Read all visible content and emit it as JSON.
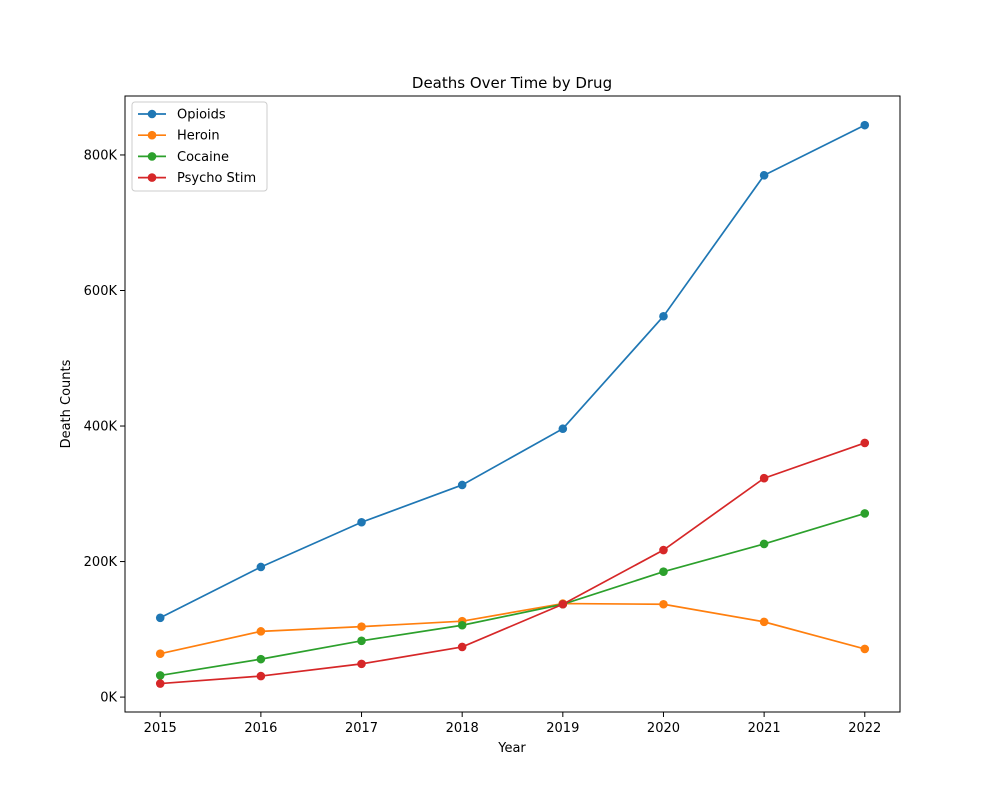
{
  "chart_data": {
    "type": "line",
    "title": "Deaths Over Time by Drug",
    "xlabel": "Year",
    "ylabel": "Death Counts",
    "x": [
      2015,
      2016,
      2017,
      2018,
      2019,
      2020,
      2021,
      2022
    ],
    "xticks": [
      "2015",
      "2016",
      "2017",
      "2018",
      "2019",
      "2020",
      "2021",
      "2022"
    ],
    "yticks": [
      {
        "value": 0,
        "label": "0K"
      },
      {
        "value": 200000,
        "label": "200K"
      },
      {
        "value": 400000,
        "label": "400K"
      },
      {
        "value": 600000,
        "label": "600K"
      },
      {
        "value": 800000,
        "label": "800K"
      }
    ],
    "xlim": [
      2014.65,
      2022.35
    ],
    "ylim": [
      -22000,
      887000
    ],
    "grid": false,
    "legend_position": "top-left",
    "series": [
      {
        "name": "Opioids",
        "color": "#1f77b4",
        "values": [
          117000,
          192000,
          258000,
          313000,
          396000,
          562000,
          770000,
          844000
        ]
      },
      {
        "name": "Heroin",
        "color": "#ff7f0e",
        "values": [
          64000,
          97000,
          104000,
          112000,
          138000,
          137000,
          111000,
          71000
        ]
      },
      {
        "name": "Cocaine",
        "color": "#2ca02c",
        "values": [
          32000,
          56000,
          83000,
          106000,
          137000,
          185000,
          226000,
          271000
        ]
      },
      {
        "name": "Psycho Stim",
        "color": "#d62728",
        "values": [
          20000,
          31000,
          49000,
          74000,
          137000,
          217000,
          323000,
          375000
        ]
      }
    ]
  }
}
